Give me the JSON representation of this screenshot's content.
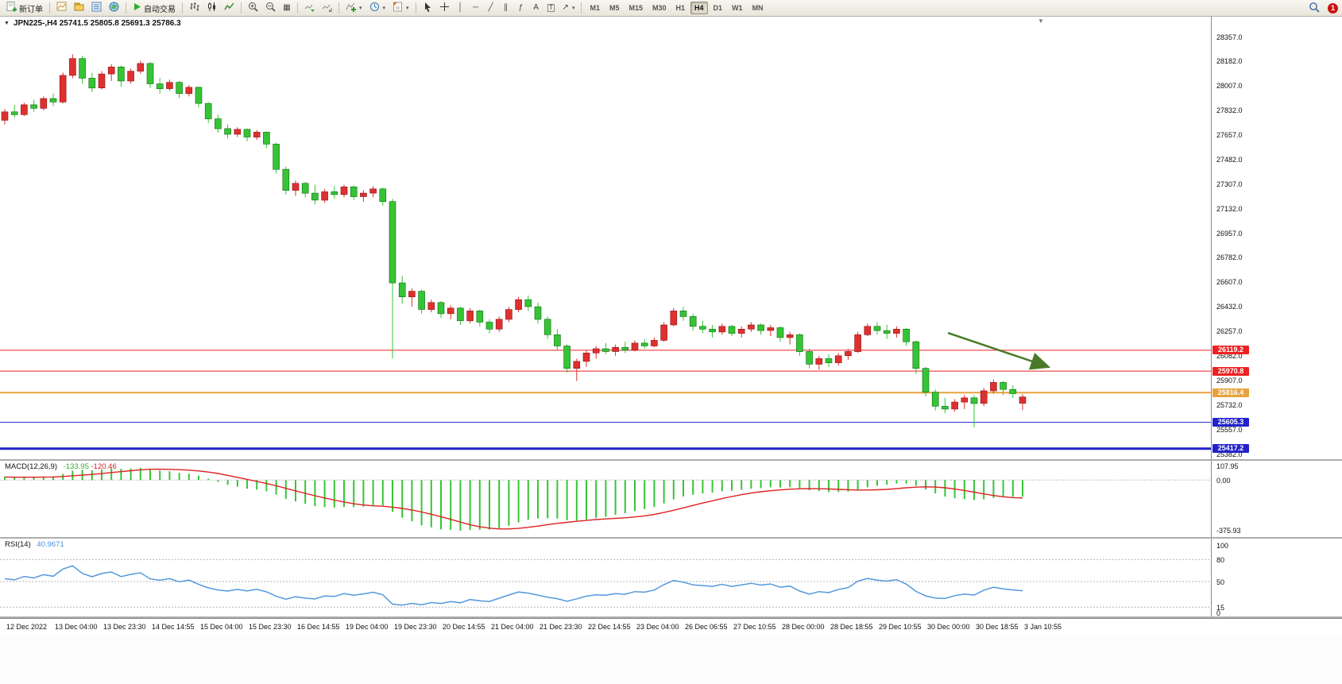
{
  "toolbar": {
    "new_order_label": "新订单",
    "autotrading_label": "自动交易",
    "timeframes": [
      "M1",
      "M5",
      "M15",
      "M30",
      "H1",
      "H4",
      "D1",
      "W1",
      "MN"
    ],
    "active_timeframe": "H4",
    "notification_count": "1"
  },
  "icons": {
    "caret": "▾",
    "vertical_line": "│",
    "horizontal_line": "─",
    "trendline": "╱",
    "channel": "∥",
    "fibonacci": "ƒ",
    "text": "A",
    "text_label": "T",
    "arrows": "↗",
    "grid": "▦",
    "menu_triangle": "▼",
    "shift_marker": "▼"
  },
  "chart": {
    "title": "JPN225-,H4 25741.5 25805.8 25691.3 25786.3",
    "symbol": "JPN225-",
    "period": "H4"
  },
  "price_axis": {
    "labels": [
      "28357.0",
      "28182.0",
      "28007.0",
      "27832.0",
      "27657.0",
      "27482.0",
      "27307.0",
      "27132.0",
      "26957.0",
      "26782.0",
      "26607.0",
      "26432.0",
      "26257.0",
      "26082.0",
      "25907.0",
      "25732.0",
      "25557.0",
      "25382.0"
    ]
  },
  "hlines": [
    {
      "price": 26119.2,
      "label": "26119.2",
      "color": "#ee2222",
      "width": 1
    },
    {
      "price": 25970.8,
      "label": "25970.8",
      "color": "#ee2222",
      "width": 1
    },
    {
      "price": 25816.4,
      "label": "25816.4",
      "color": "#e8a33d",
      "width": 2
    },
    {
      "price": 25605.3,
      "label": "25605.3",
      "color": "#2222cc",
      "width": 1
    },
    {
      "price": 25417.2,
      "label": "25417.2",
      "color": "#2222cc",
      "width": 3
    }
  ],
  "time_axis": {
    "labels": [
      "12 Dec 2022",
      "13 Dec 04:00",
      "13 Dec 23:30",
      "14 Dec 14:55",
      "15 Dec 04:00",
      "15 Dec 23:30",
      "16 Dec 14:55",
      "19 Dec 04:00",
      "19 Dec 23:30",
      "20 Dec 14:55",
      "21 Dec 04:00",
      "21 Dec 23:30",
      "22 Dec 14:55",
      "23 Dec 04:00",
      "26 Dec 06:55",
      "27 Dec 10:55",
      "28 Dec 00:00",
      "28 Dec 18:55",
      "29 Dec 10:55",
      "30 Dec 00:00",
      "30 Dec 18:55",
      "3 Jan 10:55"
    ]
  },
  "macd": {
    "label": "MACD(12,26,9)",
    "value1": "-133.95",
    "value2": "-120.46",
    "axis": [
      "107.95",
      "0.00",
      "-375.93"
    ]
  },
  "rsi": {
    "label": "RSI(14)",
    "value": "40.9671",
    "axis": [
      "100",
      "80",
      "50",
      "15",
      "0"
    ],
    "levels": [
      80,
      50,
      15
    ]
  },
  "colors": {
    "bull": "#df3030",
    "bear": "#36c436",
    "macd_hist": "#36c436",
    "macd_signal": "#dd2222",
    "rsi_line": "#5599dd",
    "arrow": "#4a7a28"
  },
  "chart_data": {
    "type": "candlestick",
    "symbol": "JPN225-",
    "period": "H4",
    "note": "red = bullish, green = bearish (Chinese color convention)",
    "ohlc_current": {
      "open": 25741.5,
      "high": 25805.8,
      "low": 25691.3,
      "close": 25786.3
    },
    "ylim": [
      25382.0,
      28357.0
    ],
    "indicators": [
      {
        "name": "MACD",
        "params": "12,26,9",
        "values": [
          -133.95,
          -120.46
        ],
        "axis_range": [
          107.95,
          -375.93
        ]
      },
      {
        "name": "RSI",
        "params": "14",
        "value": 40.9671,
        "levels": [
          80,
          50,
          15
        ]
      }
    ],
    "annotations": [
      {
        "type": "arrow",
        "color": "#4a7a28",
        "from": {
          "index": 97.3,
          "price": 26243
        },
        "to": {
          "index": 107.5,
          "price": 26005
        }
      }
    ],
    "candles": [
      [
        27760,
        27840,
        27730,
        27820
      ],
      [
        27820,
        27870,
        27780,
        27800
      ],
      [
        27800,
        27885,
        27790,
        27870
      ],
      [
        27870,
        27905,
        27820,
        27845
      ],
      [
        27845,
        27930,
        27830,
        27915
      ],
      [
        27915,
        27950,
        27860,
        27890
      ],
      [
        27890,
        28100,
        27880,
        28080
      ],
      [
        28080,
        28230,
        28060,
        28200
      ],
      [
        28200,
        28220,
        28020,
        28060
      ],
      [
        28060,
        28100,
        27960,
        27990
      ],
      [
        27990,
        28110,
        27980,
        28090
      ],
      [
        28090,
        28160,
        28040,
        28140
      ],
      [
        28140,
        28150,
        28000,
        28040
      ],
      [
        28040,
        28130,
        28020,
        28110
      ],
      [
        28110,
        28185,
        28090,
        28165
      ],
      [
        28165,
        28175,
        27990,
        28020
      ],
      [
        28020,
        28060,
        27950,
        27985
      ],
      [
        27985,
        28050,
        27970,
        28030
      ],
      [
        28030,
        28040,
        27920,
        27950
      ],
      [
        27950,
        28010,
        27930,
        27995
      ],
      [
        27995,
        28000,
        27850,
        27880
      ],
      [
        27880,
        27890,
        27740,
        27770
      ],
      [
        27770,
        27800,
        27670,
        27700
      ],
      [
        27700,
        27730,
        27630,
        27660
      ],
      [
        27660,
        27710,
        27640,
        27695
      ],
      [
        27695,
        27700,
        27610,
        27640
      ],
      [
        27640,
        27690,
        27620,
        27675
      ],
      [
        27675,
        27680,
        27560,
        27590
      ],
      [
        27590,
        27600,
        27380,
        27410
      ],
      [
        27410,
        27430,
        27230,
        27260
      ],
      [
        27260,
        27330,
        27220,
        27310
      ],
      [
        27310,
        27320,
        27210,
        27240
      ],
      [
        27240,
        27300,
        27160,
        27190
      ],
      [
        27190,
        27270,
        27170,
        27250
      ],
      [
        27250,
        27290,
        27200,
        27230
      ],
      [
        27230,
        27300,
        27210,
        27285
      ],
      [
        27285,
        27295,
        27190,
        27215
      ],
      [
        27215,
        27260,
        27180,
        27240
      ],
      [
        27240,
        27290,
        27210,
        27270
      ],
      [
        27270,
        27280,
        27150,
        27180
      ],
      [
        27180,
        27200,
        26060,
        26600
      ],
      [
        26600,
        26650,
        26450,
        26500
      ],
      [
        26500,
        26560,
        26430,
        26540
      ],
      [
        26540,
        26550,
        26380,
        26410
      ],
      [
        26410,
        26480,
        26390,
        26460
      ],
      [
        26460,
        26470,
        26350,
        26380
      ],
      [
        26380,
        26440,
        26340,
        26420
      ],
      [
        26420,
        26430,
        26300,
        26330
      ],
      [
        26330,
        26420,
        26310,
        26400
      ],
      [
        26400,
        26410,
        26290,
        26320
      ],
      [
        26320,
        26340,
        26240,
        26270
      ],
      [
        26270,
        26360,
        26250,
        26340
      ],
      [
        26340,
        26430,
        26320,
        26410
      ],
      [
        26410,
        26500,
        26390,
        26480
      ],
      [
        26480,
        26510,
        26400,
        26430
      ],
      [
        26430,
        26460,
        26310,
        26340
      ],
      [
        26340,
        26360,
        26200,
        26230
      ],
      [
        26230,
        26270,
        26120,
        26150
      ],
      [
        26150,
        26160,
        25960,
        25990
      ],
      [
        25990,
        26060,
        25900,
        26040
      ],
      [
        26040,
        26120,
        26000,
        26100
      ],
      [
        26100,
        26150,
        26060,
        26130
      ],
      [
        26130,
        26170,
        26090,
        26110
      ],
      [
        26110,
        26160,
        26080,
        26140
      ],
      [
        26140,
        26180,
        26100,
        26120
      ],
      [
        26120,
        26190,
        26110,
        26170
      ],
      [
        26170,
        26200,
        26130,
        26150
      ],
      [
        26150,
        26210,
        26140,
        26190
      ],
      [
        26190,
        26320,
        26180,
        26300
      ],
      [
        26300,
        26420,
        26290,
        26400
      ],
      [
        26400,
        26430,
        26330,
        26360
      ],
      [
        26360,
        26380,
        26260,
        26290
      ],
      [
        26290,
        26330,
        26240,
        26270
      ],
      [
        26270,
        26300,
        26210,
        26250
      ],
      [
        26250,
        26310,
        26230,
        26290
      ],
      [
        26290,
        26300,
        26220,
        26240
      ],
      [
        26240,
        26290,
        26210,
        26270
      ],
      [
        26270,
        26320,
        26250,
        26300
      ],
      [
        26300,
        26310,
        26230,
        26260
      ],
      [
        26260,
        26300,
        26220,
        26280
      ],
      [
        26280,
        26290,
        26180,
        26210
      ],
      [
        26210,
        26250,
        26160,
        26230
      ],
      [
        26230,
        26240,
        26080,
        26110
      ],
      [
        26110,
        26130,
        25990,
        26020
      ],
      [
        26020,
        26080,
        25980,
        26060
      ],
      [
        26060,
        26090,
        26000,
        26030
      ],
      [
        26030,
        26100,
        26010,
        26080
      ],
      [
        26080,
        26130,
        26050,
        26110
      ],
      [
        26110,
        26250,
        26100,
        26230
      ],
      [
        26230,
        26310,
        26220,
        26290
      ],
      [
        26290,
        26320,
        26230,
        26260
      ],
      [
        26260,
        26300,
        26200,
        26240
      ],
      [
        26240,
        26290,
        26210,
        26270
      ],
      [
        26270,
        26280,
        26150,
        26180
      ],
      [
        26180,
        26190,
        25950,
        25990
      ],
      [
        25990,
        26000,
        25790,
        25820
      ],
      [
        25820,
        25840,
        25690,
        25720
      ],
      [
        25720,
        25780,
        25670,
        25700
      ],
      [
        25700,
        25770,
        25680,
        25750
      ],
      [
        25750,
        25800,
        25700,
        25780
      ],
      [
        25780,
        25800,
        25570,
        25740
      ],
      [
        25740,
        25850,
        25720,
        25830
      ],
      [
        25830,
        25910,
        25810,
        25890
      ],
      [
        25890,
        25900,
        25800,
        25840
      ],
      [
        25840,
        25870,
        25780,
        25810
      ],
      [
        25741.5,
        25805.8,
        25691.3,
        25786.3
      ]
    ]
  }
}
